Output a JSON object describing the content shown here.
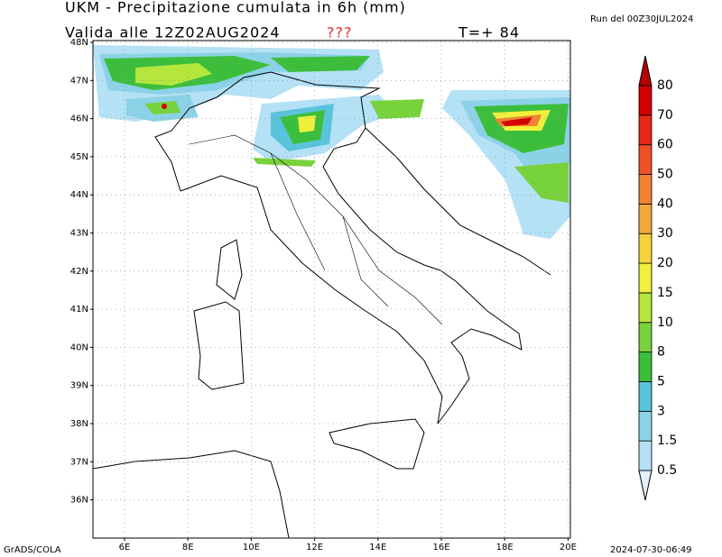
{
  "header": {
    "title": "UKM - Precipitazione cumulata in 6h (mm)",
    "valid": "Valida alle 12Z02AUG2024",
    "flag": "???",
    "step": "T=+ 84",
    "run": "Run del 00Z30JUL2024"
  },
  "map": {
    "lat_labels": [
      "48N",
      "47N",
      "46N",
      "45N",
      "44N",
      "43N",
      "42N",
      "41N",
      "40N",
      "39N",
      "38N",
      "37N",
      "36N"
    ],
    "lon_labels": [
      "6E",
      "8E",
      "10E",
      "12E",
      "14E",
      "16E",
      "18E",
      "20E"
    ]
  },
  "colorbar": {
    "labels": [
      "0.5",
      "1.5",
      "3",
      "5",
      "8",
      "10",
      "15",
      "20",
      "30",
      "40",
      "50",
      "60",
      "70",
      "80"
    ],
    "colors": [
      "#e1f0fa",
      "#b4e1f5",
      "#8cd2e6",
      "#5ac3dc",
      "#3cbe3c",
      "#78d23c",
      "#b4e63c",
      "#f0f03c",
      "#f5d23c",
      "#f0aa3c",
      "#f08232",
      "#f05028",
      "#e62814",
      "#d20000",
      "#b40000"
    ]
  },
  "footer": {
    "left": "GrADS/COLA",
    "right": "2024-07-30-06:49"
  }
}
